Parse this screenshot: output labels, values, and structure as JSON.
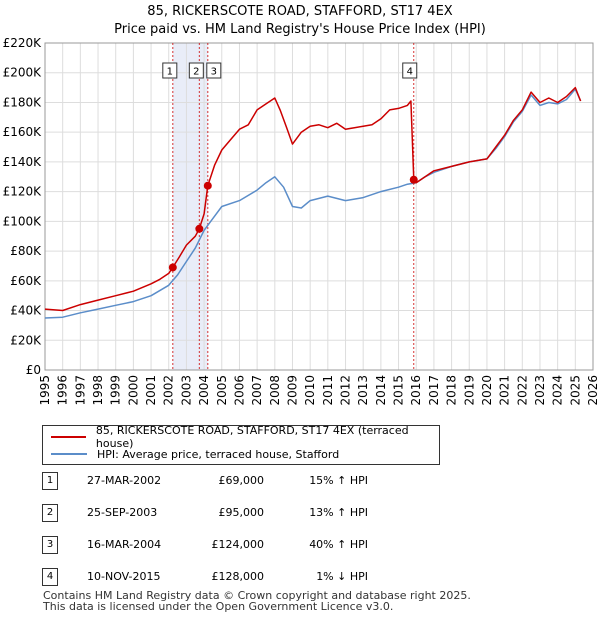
{
  "title": {
    "line1": "85, RICKERSCOTE ROAD, STAFFORD, ST17 4EX",
    "line2": "Price paid vs. HM Land Registry's House Price Index (HPI)"
  },
  "colors": {
    "property_line": "#cc0000",
    "hpi_line": "#5b8dc9",
    "shade": "#dfe6f5",
    "marker_line": "#cc0000"
  },
  "chart_data": {
    "type": "line",
    "ylim": [
      0,
      220000
    ],
    "xlim": [
      1995,
      2026
    ],
    "yticks": [
      0,
      20000,
      40000,
      60000,
      80000,
      100000,
      120000,
      140000,
      160000,
      180000,
      200000,
      220000
    ],
    "ytick_labels": [
      "£0",
      "£20K",
      "£40K",
      "£60K",
      "£80K",
      "£100K",
      "£120K",
      "£140K",
      "£160K",
      "£180K",
      "£200K",
      "£220K"
    ],
    "xticks": [
      "1995",
      "1996",
      "1997",
      "1998",
      "1999",
      "2000",
      "2001",
      "2002",
      "2003",
      "2004",
      "2005",
      "2006",
      "2007",
      "2008",
      "2009",
      "2010",
      "2011",
      "2012",
      "2013",
      "2014",
      "2015",
      "2016",
      "2017",
      "2018",
      "2019",
      "2020",
      "2021",
      "2022",
      "2023",
      "2024",
      "2025",
      "2026"
    ],
    "grid": true,
    "shaded_periods": [
      [
        2002.23,
        2004.21
      ]
    ],
    "sale_markers": [
      {
        "label": "1",
        "x": 2002.23,
        "y": 69000
      },
      {
        "label": "2",
        "x": 2003.73,
        "y": 95000
      },
      {
        "label": "3",
        "x": 2004.21,
        "y": 124000
      },
      {
        "label": "4",
        "x": 2015.86,
        "y": 128000
      }
    ],
    "series": [
      {
        "name": "85, RICKERSCOTE ROAD, STAFFORD, ST17 4EX (terraced house)",
        "x": [
          1995.0,
          1996.0,
          1997.0,
          1998.0,
          1999.0,
          2000.0,
          2001.0,
          2001.5,
          2002.0,
          2002.23,
          2002.6,
          2003.0,
          2003.5,
          2003.73,
          2004.0,
          2004.21,
          2004.6,
          2005.0,
          2005.5,
          2006.0,
          2006.5,
          2007.0,
          2007.5,
          2008.0,
          2008.3,
          2008.7,
          2009.0,
          2009.5,
          2010.0,
          2010.5,
          2011.0,
          2011.5,
          2012.0,
          2012.5,
          2013.0,
          2013.5,
          2014.0,
          2014.5,
          2015.0,
          2015.5,
          2015.7,
          2015.86,
          2016.0,
          2016.5,
          2017.0,
          2018.0,
          2019.0,
          2020.0,
          2020.5,
          2021.0,
          2021.5,
          2022.0,
          2022.5,
          2023.0,
          2023.5,
          2024.0,
          2024.5,
          2025.0,
          2025.3
        ],
        "y": [
          41000,
          40000,
          44000,
          47000,
          50000,
          53000,
          58000,
          61000,
          65000,
          69000,
          76000,
          84000,
          90000,
          95000,
          105000,
          124000,
          138000,
          148000,
          155000,
          162000,
          165000,
          175000,
          179000,
          183000,
          175000,
          162000,
          152000,
          160000,
          164000,
          165000,
          163000,
          166000,
          162000,
          163000,
          164000,
          165000,
          169000,
          175000,
          176000,
          178000,
          181000,
          128000,
          126000,
          130000,
          134000,
          137000,
          140000,
          142000,
          150000,
          158000,
          168000,
          175000,
          187000,
          180000,
          183000,
          180000,
          184000,
          190000,
          181000
        ]
      },
      {
        "name": "HPI: Average price, terraced house, Stafford",
        "x": [
          1995.0,
          1996.0,
          1997.0,
          1998.0,
          1999.0,
          2000.0,
          2001.0,
          2002.0,
          2002.5,
          2003.0,
          2003.5,
          2004.0,
          2004.5,
          2005.0,
          2006.0,
          2007.0,
          2007.5,
          2008.0,
          2008.5,
          2009.0,
          2009.5,
          2010.0,
          2011.0,
          2012.0,
          2013.0,
          2014.0,
          2015.0,
          2015.5,
          2016.0,
          2016.5,
          2017.0,
          2018.0,
          2019.0,
          2020.0,
          2020.5,
          2021.0,
          2021.5,
          2022.0,
          2022.5,
          2023.0,
          2023.5,
          2024.0,
          2024.5,
          2025.0,
          2025.3
        ],
        "y": [
          35000,
          35500,
          38500,
          41000,
          43500,
          46000,
          50000,
          57000,
          64000,
          73000,
          82000,
          94000,
          102000,
          110000,
          114000,
          121000,
          126000,
          130000,
          123000,
          110000,
          109000,
          114000,
          117000,
          114000,
          116000,
          120000,
          123000,
          125000,
          126000,
          130000,
          133000,
          137000,
          140000,
          142000,
          149000,
          157000,
          167000,
          174000,
          185000,
          178000,
          180000,
          179000,
          182000,
          189000,
          181000
        ]
      }
    ]
  },
  "legend": {
    "property_label": "85, RICKERSCOTE ROAD, STAFFORD, ST17 4EX (terraced house)",
    "hpi_label": "HPI: Average price, terraced house, Stafford"
  },
  "sales": [
    {
      "num": "1",
      "date": "27-MAR-2002",
      "price": "£69,000",
      "hpi": "15% ↑ HPI"
    },
    {
      "num": "2",
      "date": "25-SEP-2003",
      "price": "£95,000",
      "hpi": "13% ↑ HPI"
    },
    {
      "num": "3",
      "date": "16-MAR-2004",
      "price": "£124,000",
      "hpi": "40% ↑ HPI"
    },
    {
      "num": "4",
      "date": "10-NOV-2015",
      "price": "£128,000",
      "hpi": "1% ↓ HPI"
    }
  ],
  "footer": {
    "line1": "Contains HM Land Registry data © Crown copyright and database right 2025.",
    "line2": "This data is licensed under the Open Government Licence v3.0."
  }
}
